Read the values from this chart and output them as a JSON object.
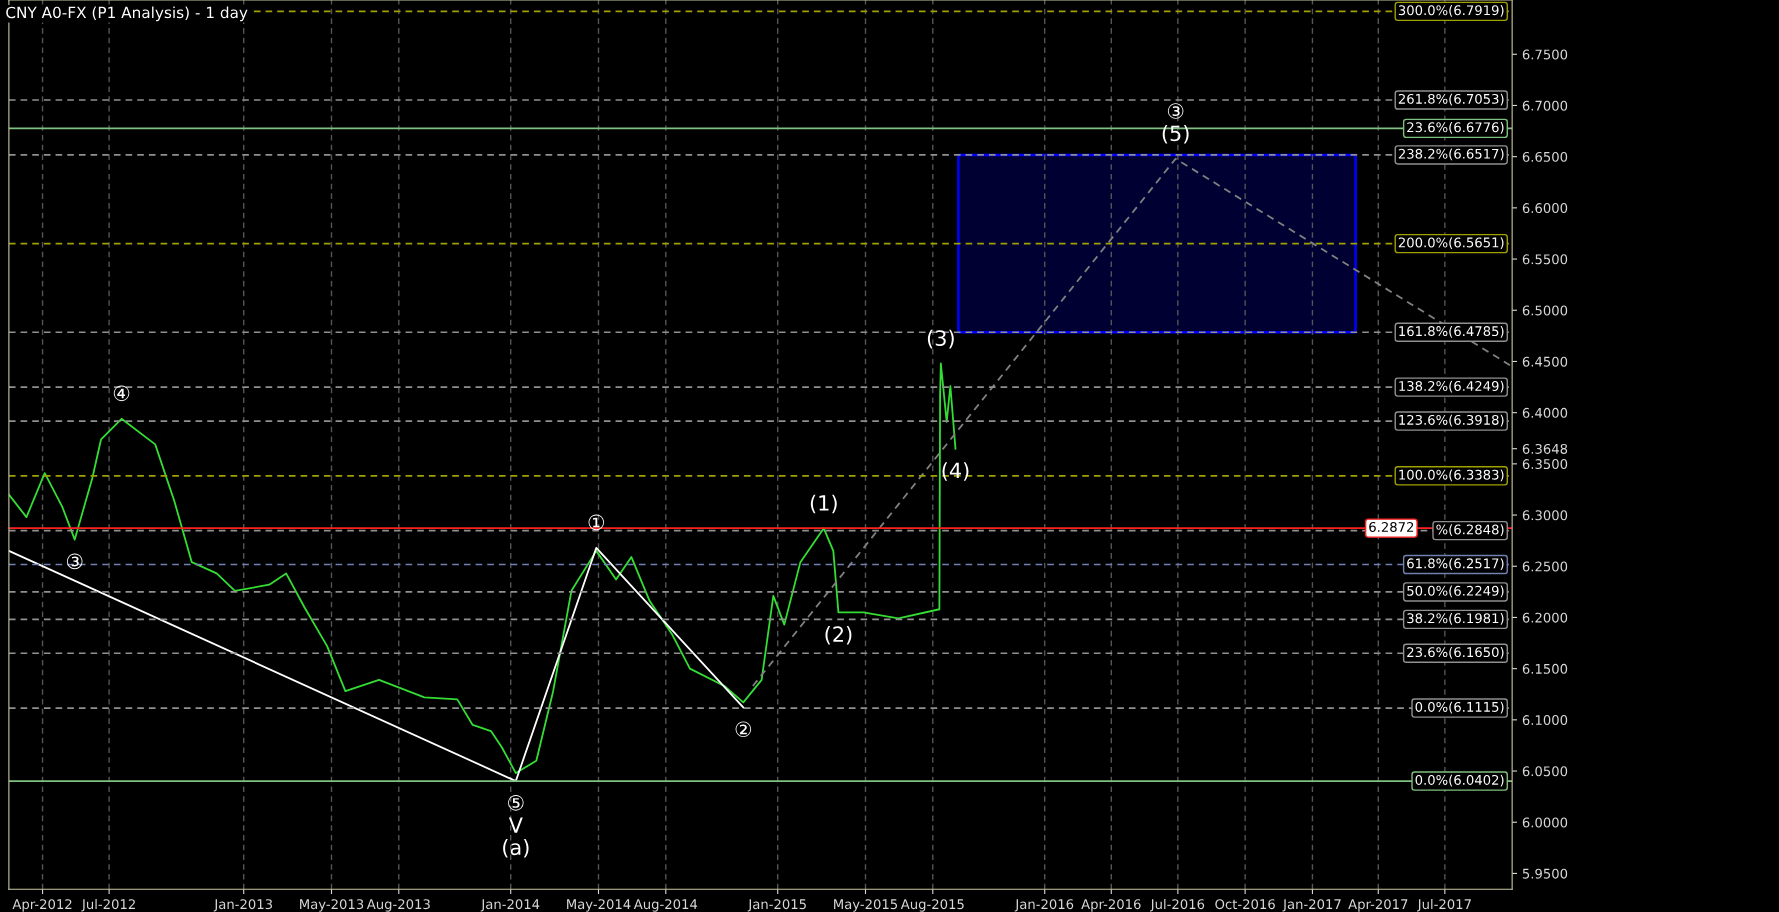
{
  "chart_data": {
    "type": "line",
    "title": "CNY A0-FX (P1 Analysis) - 1 day",
    "xlim": [
      "2012-02-15",
      "2017-10-01"
    ],
    "ylim": [
      5.9346,
      6.803
    ],
    "xticks": [
      {
        "value": "2012-04-01",
        "label": "Apr-2012"
      },
      {
        "value": "2012-07-01",
        "label": "Jul-2012"
      },
      {
        "value": "2013-01-01",
        "label": "Jan-2013"
      },
      {
        "value": "2013-05-01",
        "label": "May-2013"
      },
      {
        "value": "2013-08-01",
        "label": "Aug-2013"
      },
      {
        "value": "2014-01-01",
        "label": "Jan-2014"
      },
      {
        "value": "2014-05-01",
        "label": "May-2014"
      },
      {
        "value": "2014-08-01",
        "label": "Aug-2014"
      },
      {
        "value": "2015-01-01",
        "label": "Jan-2015"
      },
      {
        "value": "2015-05-01",
        "label": "May-2015"
      },
      {
        "value": "2015-08-01",
        "label": "Aug-2015"
      },
      {
        "value": "2016-01-01",
        "label": "Jan-2016"
      },
      {
        "value": "2016-04-01",
        "label": "Apr-2016"
      },
      {
        "value": "2016-07-01",
        "label": "Jul-2016"
      },
      {
        "value": "2016-10-01",
        "label": "Oct-2016"
      },
      {
        "value": "2017-01-01",
        "label": "Jan-2017"
      },
      {
        "value": "2017-04-01",
        "label": "Apr-2017"
      },
      {
        "value": "2017-07-01",
        "label": "Jul-2017"
      }
    ],
    "yticks": [
      {
        "value": 5.95,
        "label": "5.9500"
      },
      {
        "value": 6.0,
        "label": "6.0000"
      },
      {
        "value": 6.05,
        "label": "6.0500"
      },
      {
        "value": 6.1,
        "label": "6.1000"
      },
      {
        "value": 6.15,
        "label": "6.1500"
      },
      {
        "value": 6.2,
        "label": "6.2000"
      },
      {
        "value": 6.25,
        "label": "6.2500"
      },
      {
        "value": 6.3,
        "label": "6.3000"
      },
      {
        "value": 6.35,
        "label": "6.3500"
      },
      {
        "value": 6.3648,
        "label": "6.3648"
      },
      {
        "value": 6.4,
        "label": "6.4000"
      },
      {
        "value": 6.45,
        "label": "6.4500"
      },
      {
        "value": 6.5,
        "label": "6.5000"
      },
      {
        "value": 6.55,
        "label": "6.5500"
      },
      {
        "value": 6.6,
        "label": "6.6000"
      },
      {
        "value": 6.65,
        "label": "6.6500"
      },
      {
        "value": 6.7,
        "label": "6.7000"
      },
      {
        "value": 6.75,
        "label": "6.7500"
      }
    ],
    "grid": "x",
    "marker": "none",
    "series": [
      {
        "color": "#33dd33",
        "x": [
          "2012-02-15",
          "2012-03-10",
          "2012-04-04",
          "2012-04-28",
          "2012-05-15",
          "2012-06-08",
          "2012-06-20",
          "2012-07-18",
          "2012-09-02",
          "2012-09-28",
          "2012-10-22",
          "2012-11-25",
          "2012-12-20",
          "2013-02-05",
          "2013-02-28",
          "2013-03-25",
          "2013-04-25",
          "2013-05-20",
          "2013-07-05",
          "2013-09-05",
          "2013-10-20",
          "2013-11-10",
          "2013-12-05",
          "2013-12-20",
          "2014-01-08",
          "2014-02-05",
          "2014-02-28",
          "2014-03-25",
          "2014-04-28",
          "2014-05-25",
          "2014-06-15",
          "2014-07-10",
          "2014-08-10",
          "2014-09-03",
          "2014-10-20",
          "2014-11-15",
          "2014-12-10",
          "2014-12-26",
          "2015-01-10",
          "2015-02-01",
          "2015-03-05",
          "2015-03-18",
          "2015-03-25",
          "2015-04-28",
          "2015-06-15",
          "2015-08-10",
          "2015-08-11",
          "2015-08-12",
          "2015-08-20",
          "2015-08-25",
          "2015-09-01"
        ],
        "values": [
          6.32,
          6.298,
          6.341,
          6.308,
          6.276,
          6.336,
          6.374,
          6.394,
          6.369,
          6.314,
          6.254,
          6.243,
          6.226,
          6.232,
          6.243,
          6.21,
          6.172,
          6.128,
          6.139,
          6.122,
          6.12,
          6.095,
          6.089,
          6.073,
          6.048,
          6.06,
          6.128,
          6.226,
          6.265,
          6.237,
          6.259,
          6.216,
          6.183,
          6.15,
          6.133,
          6.117,
          6.139,
          6.221,
          6.193,
          6.254,
          6.287,
          6.265,
          6.205,
          6.205,
          6.199,
          6.208,
          6.418,
          6.448,
          6.391,
          6.426,
          6.3648
        ]
      },
      {
        "color": "#ffffff",
        "line_style": "solid",
        "x": [
          "2012-02-15",
          "2014-01-08",
          "2014-04-28",
          "2014-11-15"
        ],
        "values": [
          6.265,
          6.0402,
          6.268,
          6.112
        ]
      },
      {
        "color": "#808080",
        "line_style": "dashed",
        "x": [
          "2014-11-28",
          "2016-06-28",
          "2017-10-01"
        ],
        "values": [
          6.133,
          6.648,
          6.445
        ]
      },
      {
        "color": "#0000ff",
        "x": [
          "2015-09-05",
          "2017-03-01"
        ],
        "values": [
          null,
          null
        ],
        "lower": [
          6.4785,
          6.4785
        ],
        "upper": [
          6.6517,
          6.6517
        ]
      }
    ],
    "ref_lines": [
      {
        "axis": "y",
        "value": 6.7919,
        "label": "300.0%(6.7919)",
        "color": "#a0a000",
        "line_style": "dashed"
      },
      {
        "axis": "y",
        "value": 6.7053,
        "label": "261.8%(6.7053)",
        "color": "#909090",
        "line_style": "dashed"
      },
      {
        "axis": "y",
        "value": 6.6776,
        "label": "23.6%(6.6776)",
        "color": "#80c080",
        "line_style": "solid"
      },
      {
        "axis": "y",
        "value": 6.6517,
        "label": "238.2%(6.6517)",
        "color": "#909090",
        "line_style": "dashed"
      },
      {
        "axis": "y",
        "value": 6.5651,
        "label": "200.0%(6.5651)",
        "color": "#a0a000",
        "line_style": "dashed"
      },
      {
        "axis": "y",
        "value": 6.4785,
        "label": "161.8%(6.4785)",
        "color": "#909090",
        "line_style": "dashed"
      },
      {
        "axis": "y",
        "value": 6.4249,
        "label": "138.2%(6.4249)",
        "color": "#909090",
        "line_style": "dashed"
      },
      {
        "axis": "y",
        "value": 6.3918,
        "label": "123.6%(6.3918)",
        "color": "#909090",
        "line_style": "dashed"
      },
      {
        "axis": "y",
        "value": 6.3383,
        "label": "100.0%(6.3383)",
        "color": "#a0a000",
        "line_style": "dashed"
      },
      {
        "axis": "y",
        "value": 6.2872,
        "label": "6.2872",
        "color": "#ff2020",
        "line_style": "solid"
      },
      {
        "axis": "y",
        "value": 6.2848,
        "label": "%(6.2848)",
        "color": "#909090",
        "line_style": "dashed"
      },
      {
        "axis": "y",
        "value": 6.2517,
        "label": "61.8%(6.2517)",
        "color": "#7080b0",
        "line_style": "dashed"
      },
      {
        "axis": "y",
        "value": 6.2249,
        "label": "50.0%(6.2249)",
        "color": "#909090",
        "line_style": "dashed"
      },
      {
        "axis": "y",
        "value": 6.1981,
        "label": "38.2%(6.1981)",
        "color": "#909090",
        "line_style": "dashed"
      },
      {
        "axis": "y",
        "value": 6.165,
        "label": "23.6%(6.1650)",
        "color": "#909090",
        "line_style": "dashed"
      },
      {
        "axis": "y",
        "value": 6.1115,
        "label": "0.0%(6.1115)",
        "color": "#909090",
        "line_style": "dashed"
      },
      {
        "axis": "y",
        "value": 6.0402,
        "label": "0.0%(6.0402)",
        "color": "#80c080",
        "line_style": "solid"
      }
    ],
    "annotations": [
      {
        "text": "③",
        "x": "2012-05-15",
        "y": 6.276
      },
      {
        "text": "④",
        "x": "2012-07-18",
        "y": 6.394
      },
      {
        "text": "⑤",
        "x": "2014-01-08",
        "y": 6.0402
      },
      {
        "text": "V",
        "x": "2014-01-08",
        "y": 6.0402
      },
      {
        "text": "(a)",
        "x": "2014-01-08",
        "y": 6.0402
      },
      {
        "text": "①",
        "x": "2014-04-28",
        "y": 6.268
      },
      {
        "text": "②",
        "x": "2014-11-15",
        "y": 6.112
      },
      {
        "text": "(1)",
        "x": "2015-03-05",
        "y": 6.287
      },
      {
        "text": "(2)",
        "x": "2015-03-25",
        "y": 6.205
      },
      {
        "text": "(3)",
        "x": "2015-08-12",
        "y": 6.448
      },
      {
        "text": "(4)",
        "x": "2015-09-01",
        "y": 6.3648
      },
      {
        "text": "(5)",
        "x": "2016-06-28",
        "y": 6.648
      },
      {
        "text": "③",
        "x": "2016-06-28",
        "y": 6.648
      }
    ]
  }
}
